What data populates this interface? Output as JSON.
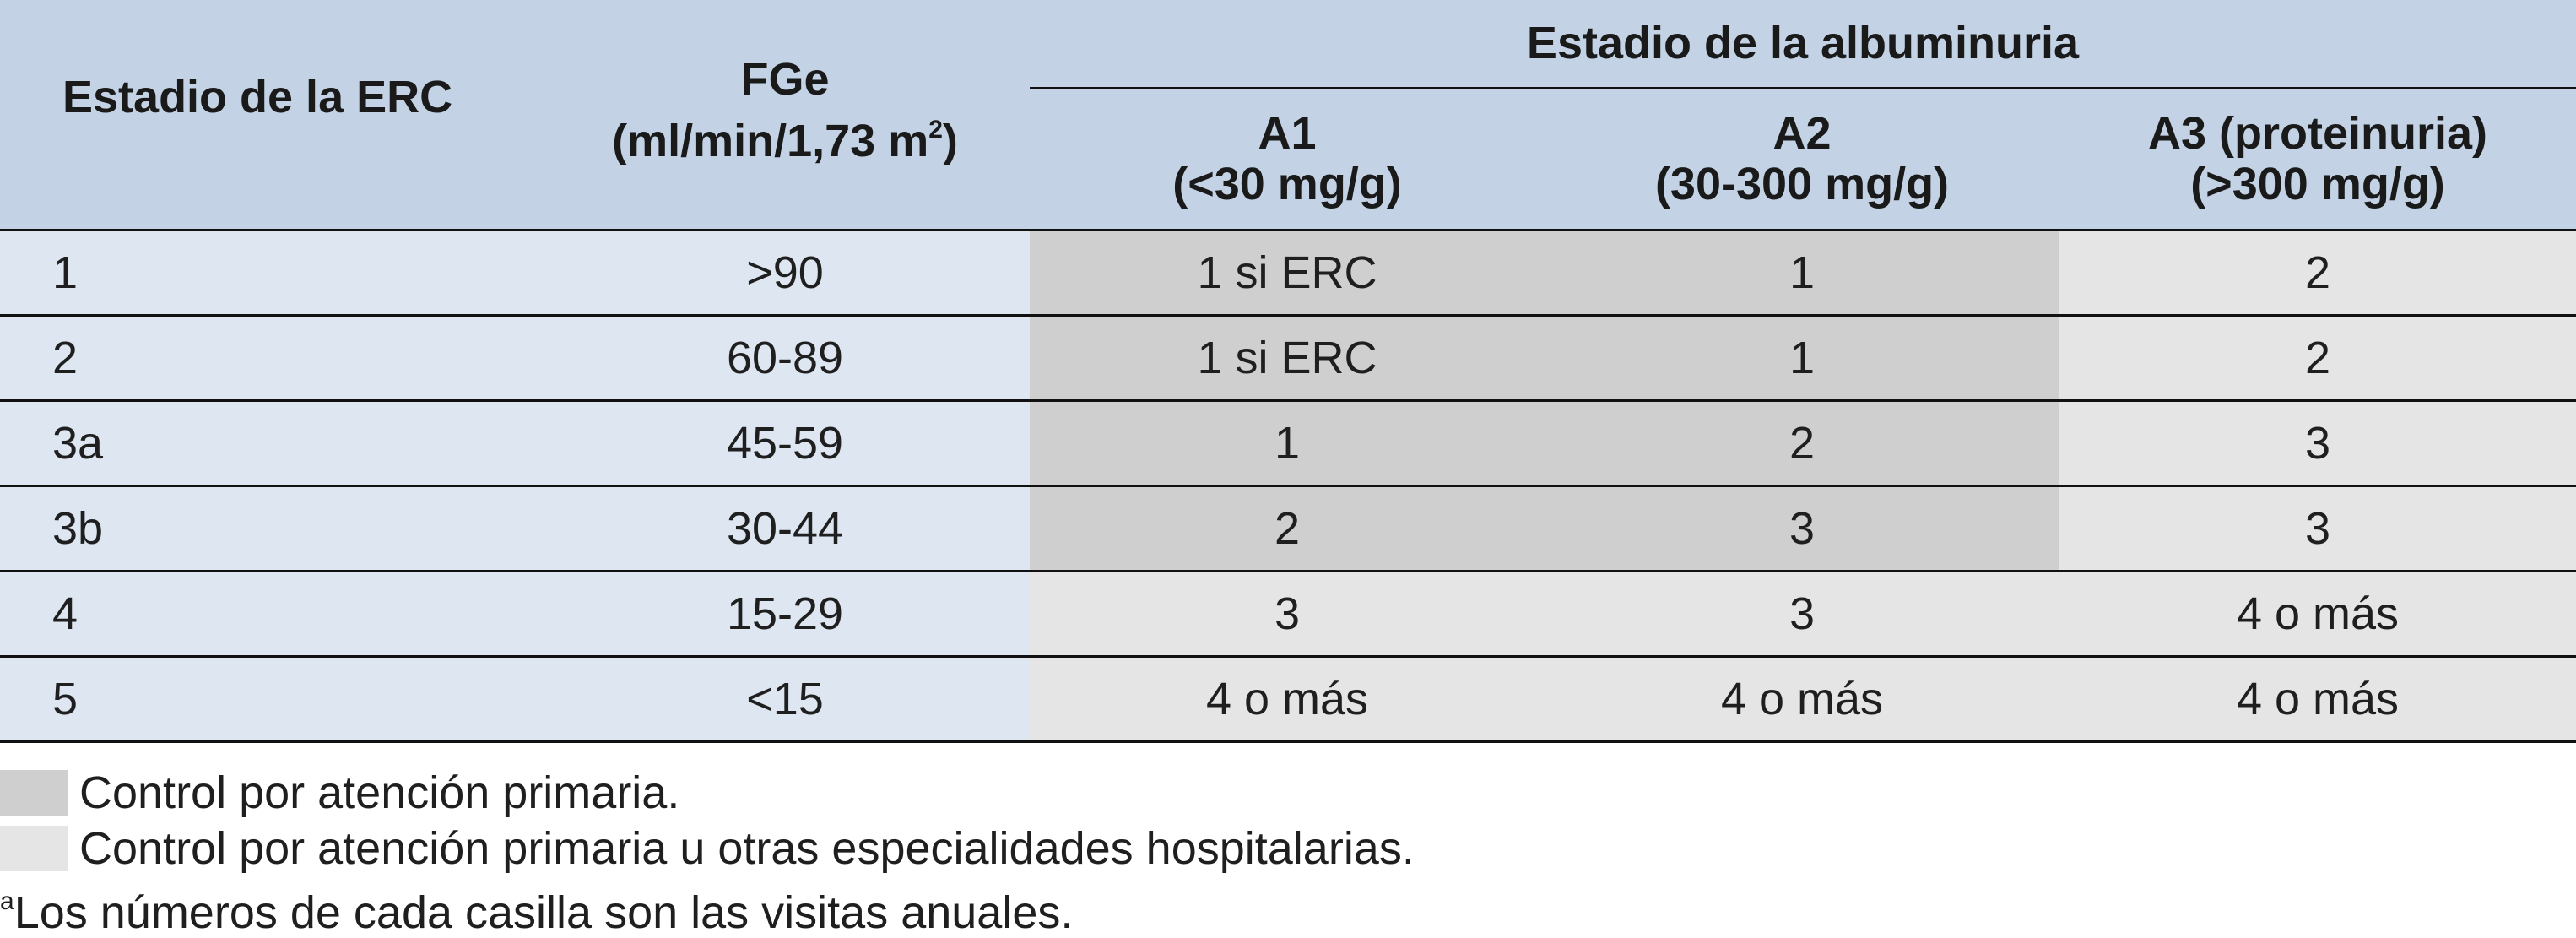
{
  "header": {
    "stage_col": "Estadio de la ERC",
    "fge_line1": "FGe",
    "fge_line2": "(ml/min/1,73 m",
    "fge_sup": "2",
    "fge_close": ")",
    "albuminuria_group": "Estadio de la albuminuria",
    "a1_line1": "A1",
    "a1_line2": "(<30 mg/g)",
    "a2_line1": "A2",
    "a2_line2": "(30-300 mg/g)",
    "a3_line1": "A3 (proteinuria)",
    "a3_line2": "(>300 mg/g)"
  },
  "rows": [
    {
      "stage": "1",
      "fge": ">90",
      "a1": "1 si ERC",
      "a2": "1",
      "a3": "2",
      "shade": [
        "dark",
        "dark",
        "light"
      ]
    },
    {
      "stage": "2",
      "fge": "60-89",
      "a1": "1 si ERC",
      "a2": "1",
      "a3": "2",
      "shade": [
        "dark",
        "dark",
        "light"
      ]
    },
    {
      "stage": "3a",
      "fge": "45-59",
      "a1": "1",
      "a2": "2",
      "a3": "3",
      "shade": [
        "dark",
        "dark",
        "light"
      ]
    },
    {
      "stage": "3b",
      "fge": "30-44",
      "a1": "2",
      "a2": "3",
      "a3": "3",
      "shade": [
        "dark",
        "dark",
        "light"
      ]
    },
    {
      "stage": "4",
      "fge": "15-29",
      "a1": "3",
      "a2": "3",
      "a3": "4 o más",
      "shade": [
        "light",
        "light",
        "light"
      ]
    },
    {
      "stage": "5",
      "fge": "<15",
      "a1": "4 o más",
      "a2": "4 o más",
      "a3": "4 o más",
      "shade": [
        "light",
        "light",
        "light"
      ]
    }
  ],
  "legend": {
    "dark_label": "Control por atención primaria.",
    "light_label": "Control por atención primaria u otras especialidades hospitalarias.",
    "note_marker": "a",
    "note_text": "Los números de cada casilla son las visitas anuales."
  },
  "colors": {
    "header_bg": "#c3d3e5",
    "first_cols_bg": "#dde6f1",
    "primary_care": "#cfcfcf",
    "primary_or_hospital": "#e5e5e5"
  }
}
